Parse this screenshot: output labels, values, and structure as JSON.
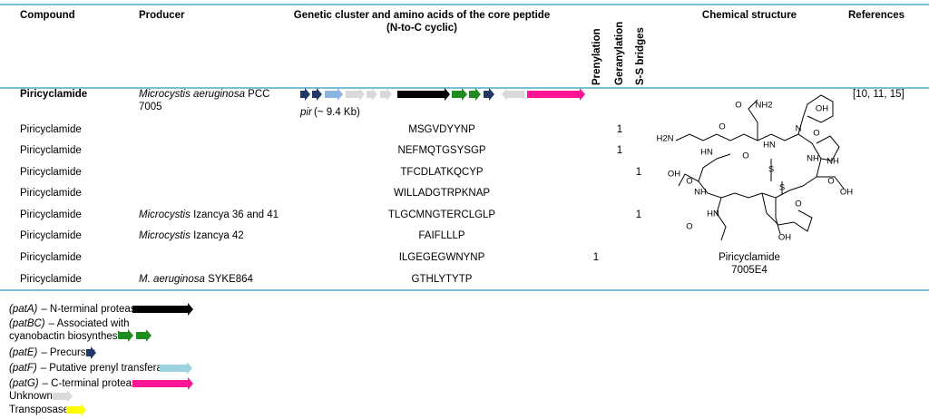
{
  "header": {
    "compound": "Compound",
    "producer": "Producer",
    "cluster": "Genetic cluster and amino acids of the core peptide",
    "cluster_note": "(N-to-C cyclic)",
    "prenylation": "Prenylation",
    "geranylation": "Geranylation",
    "ss_bridges": "S-S bridges",
    "structure": "Chemical structure",
    "references": "References"
  },
  "table": {
    "rows": [
      {
        "compound": "Piricyclamide",
        "producer": {
          "species": "Microcystis aeruginosa",
          "strain": "PCC 7005"
        },
        "cluster_label": "pir",
        "cluster_size": "(~ 9.4 Kb)",
        "references": "[10, 11, 15]"
      },
      {
        "compound": "Piricyclamide",
        "core": "MSGVDYYNP",
        "geranylation": 1
      },
      {
        "compound": "Piricyclamide",
        "core": "NEFMQTGSYSGP",
        "geranylation": 1
      },
      {
        "compound": "Piricyclamide",
        "core": "TFCDLATKQCYP",
        "ss_bridges": 1
      },
      {
        "compound": "Piricyclamide",
        "core": "WILLADGTRPKNAP"
      },
      {
        "compound": "Piricyclamide",
        "producer": {
          "species": "Microcystis",
          "strain": "Izancya 36 and 41"
        },
        "core": "TLGCMNGTERCLGLP",
        "ss_bridges": 1
      },
      {
        "compound": "Piricyclamide",
        "producer": {
          "species": "Microcystis",
          "strain": "Izancya 42"
        },
        "core": "FAIFLLLP"
      },
      {
        "compound": "Piricyclamide",
        "core": "ILGEGEGWNYNP",
        "prenylation": 1
      },
      {
        "compound": "Piricyclamide",
        "producer": {
          "species": "M. aeruginosa",
          "strain": "SYKE864"
        },
        "core": "GTHLYTYTP"
      }
    ]
  },
  "structure": {
    "caption": [
      "Piricyclamide",
      "7005E4"
    ],
    "atoms": [
      "O",
      "NH2",
      "OH",
      "H2N",
      "O",
      "HN",
      "O",
      "HN",
      "N",
      "O",
      "NH",
      "S",
      "S",
      "OH",
      "NH",
      "O",
      "O",
      "OH",
      "HN",
      "O",
      "NH",
      "O",
      "OH"
    ]
  },
  "legend": [
    {
      "gene": "(patA)",
      "text": "– N-terminal protease"
    },
    {
      "gene": "(patBC)",
      "text": "– Associated with",
      "text2": "cyanobactin biosynthesis"
    },
    {
      "gene": "(patE)",
      "text": "– Precursor"
    },
    {
      "gene": "(patF)",
      "text": "– Putative prenyl transferase"
    },
    {
      "gene": "(patG)",
      "text": "– C-terminal protease"
    },
    {
      "text": "Unknown"
    },
    {
      "text": "Transposase"
    }
  ]
}
